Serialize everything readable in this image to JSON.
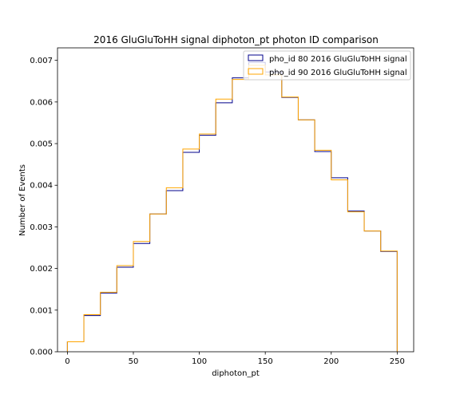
{
  "chart_data": {
    "type": "line",
    "drawstyle": "step-histogram",
    "title": "2016 GluGluToHH signal diphoton_pt photon ID comparison",
    "xlabel": "diphoton_pt",
    "ylabel": "Number of Events",
    "xlim": [
      -7.5,
      262.5
    ],
    "ylim": [
      0,
      0.0073
    ],
    "xticks": [
      0,
      50,
      100,
      150,
      200,
      250
    ],
    "yticks": [
      0.0,
      0.001,
      0.002,
      0.003,
      0.004,
      0.005,
      0.006,
      0.007
    ],
    "ytick_labels": [
      "0.000",
      "0.001",
      "0.002",
      "0.003",
      "0.004",
      "0.005",
      "0.006",
      "0.007"
    ],
    "bin_edges": [
      0,
      12.5,
      25,
      37.5,
      50,
      62.5,
      75,
      87.5,
      100,
      112.5,
      125,
      137.5,
      150,
      162.5,
      175,
      187.5,
      200,
      212.5,
      225,
      237.5,
      250
    ],
    "legend_position": "top-right",
    "series": [
      {
        "name": "pho_id 80 2016 GluGluToHH signal",
        "color": "#00008b",
        "values": [
          0.00024,
          0.00087,
          0.00141,
          0.00203,
          0.0026,
          0.00331,
          0.00387,
          0.00479,
          0.0052,
          0.00598,
          0.00658,
          0.00695,
          0.00672,
          0.00611,
          0.00557,
          0.00481,
          0.00418,
          0.00338,
          0.0029,
          0.00241
        ]
      },
      {
        "name": "pho_id 90 2016 GluGluToHH signal",
        "color": "#ffa500",
        "values": [
          0.00024,
          0.00089,
          0.00143,
          0.00207,
          0.00265,
          0.00331,
          0.00394,
          0.00487,
          0.00523,
          0.00607,
          0.00654,
          0.00688,
          0.00665,
          0.00612,
          0.00557,
          0.00484,
          0.00413,
          0.00336,
          0.0029,
          0.00242
        ]
      }
    ]
  }
}
